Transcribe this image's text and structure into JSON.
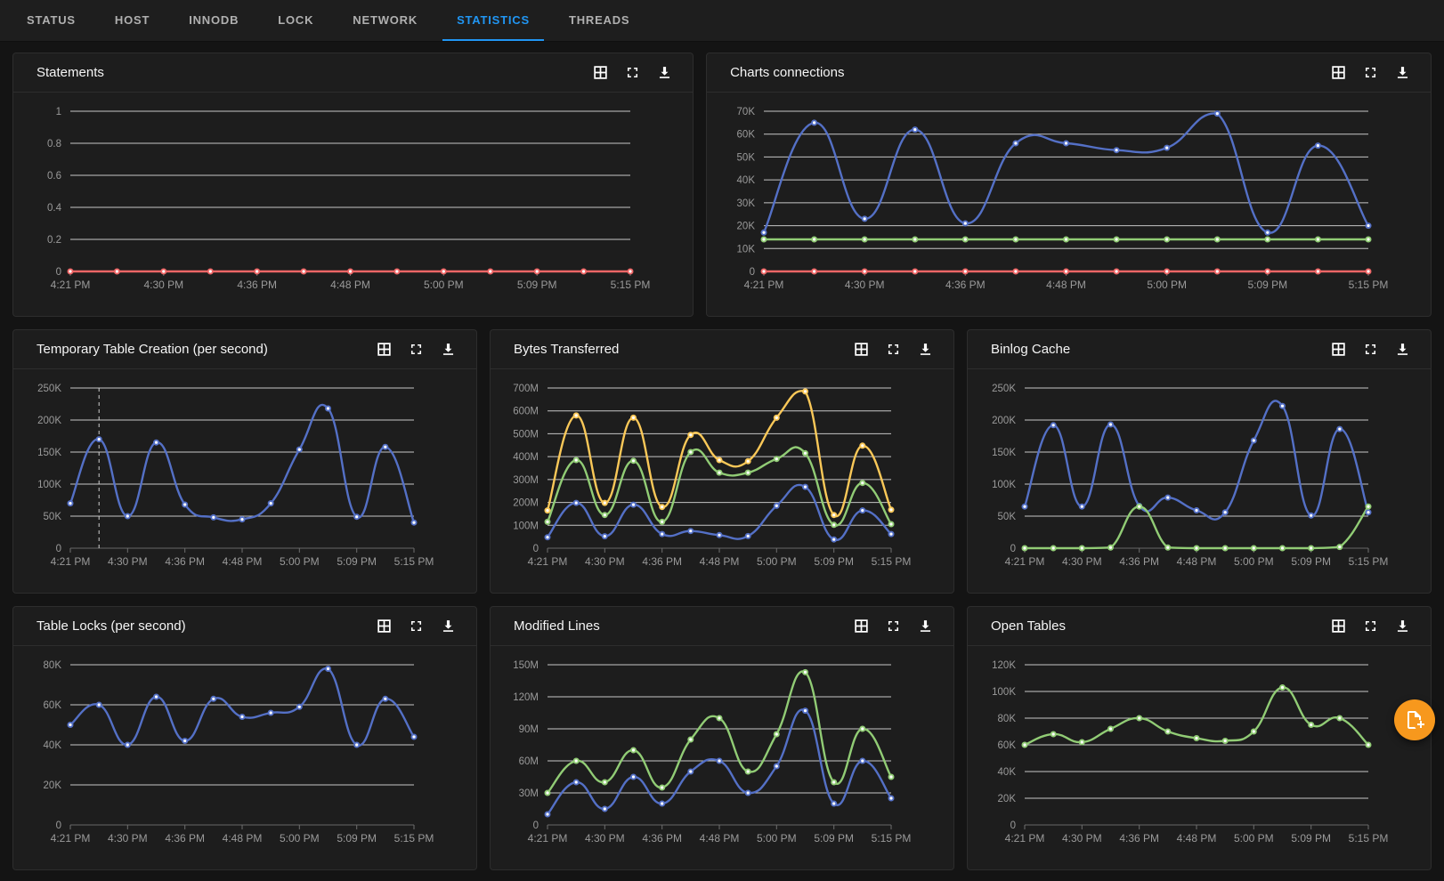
{
  "tabbar": {
    "tabs": [
      {
        "label": "STATUS",
        "active": false
      },
      {
        "label": "HOST",
        "active": false
      },
      {
        "label": "INNODB",
        "active": false
      },
      {
        "label": "LOCK",
        "active": false
      },
      {
        "label": "NETWORK",
        "active": false
      },
      {
        "label": "STATISTICS",
        "active": true
      },
      {
        "label": "THREADS",
        "active": false
      }
    ]
  },
  "panel_action_icons": [
    "table-view-icon",
    "fullscreen-icon",
    "download-icon"
  ],
  "colors": {
    "accent_blue": "#2196f3",
    "series_blue": "#5470c6",
    "series_green": "#91cc75",
    "series_yellow": "#fac858",
    "series_red": "#ee6666",
    "fab_orange": "#f7981d",
    "gridline": "#d9d9d9",
    "axis_zero": "#6e6e6e",
    "tick_text": "#9a9a9a"
  },
  "x_axis": {
    "labels": [
      "4:21 PM",
      "4:30 PM",
      "4:36 PM",
      "4:48 PM",
      "5:00 PM",
      "5:09 PM",
      "5:15 PM"
    ],
    "label_point_indices": [
      0,
      2,
      4,
      6,
      8,
      10,
      12
    ],
    "n_points": 13
  },
  "chart_data": [
    {
      "title": "Statements",
      "type": "line",
      "ymax": 1,
      "yticks": [
        {
          "v": 1,
          "label": "1"
        },
        {
          "v": 0.8,
          "label": "0.8"
        },
        {
          "v": 0.6,
          "label": "0.6"
        },
        {
          "v": 0.4,
          "label": "0.4"
        },
        {
          "v": 0.2,
          "label": "0.2"
        },
        {
          "v": 0,
          "label": "0"
        }
      ],
      "series": [
        {
          "name": "red",
          "color": "#ee6666",
          "values": [
            0,
            0,
            0,
            0,
            0,
            0,
            0,
            0,
            0,
            0,
            0,
            0,
            0
          ]
        }
      ],
      "dashed_vline_index": null
    },
    {
      "title": "Charts connections",
      "type": "line",
      "ymax": 70,
      "yticks": [
        {
          "v": 70,
          "label": "70K"
        },
        {
          "v": 60,
          "label": "60K"
        },
        {
          "v": 50,
          "label": "50K"
        },
        {
          "v": 40,
          "label": "40K"
        },
        {
          "v": 30,
          "label": "30K"
        },
        {
          "v": 20,
          "label": "20K"
        },
        {
          "v": 10,
          "label": "10K"
        },
        {
          "v": 0,
          "label": "0"
        }
      ],
      "series": [
        {
          "name": "blue",
          "color": "#5470c6",
          "values": [
            17,
            65,
            23,
            62,
            21,
            56,
            56,
            53,
            54,
            69,
            17,
            55,
            20
          ]
        },
        {
          "name": "green",
          "color": "#91cc75",
          "values": [
            14,
            14,
            14,
            14,
            14,
            14,
            14,
            14,
            14,
            14,
            14,
            14,
            14
          ]
        },
        {
          "name": "red",
          "color": "#ee6666",
          "values": [
            0,
            0,
            0,
            0,
            0,
            0,
            0,
            0,
            0,
            0,
            0,
            0,
            0
          ]
        }
      ],
      "dashed_vline_index": null
    },
    {
      "title": "Temporary Table Creation (per second)",
      "type": "line",
      "ymax": 250,
      "yticks": [
        {
          "v": 250,
          "label": "250K"
        },
        {
          "v": 200,
          "label": "200K"
        },
        {
          "v": 150,
          "label": "150K"
        },
        {
          "v": 100,
          "label": "100K"
        },
        {
          "v": 50,
          "label": "50K"
        },
        {
          "v": 0,
          "label": "0"
        }
      ],
      "series": [
        {
          "name": "blue",
          "color": "#5470c6",
          "values": [
            70,
            170,
            50,
            165,
            68,
            48,
            45,
            70,
            154,
            218,
            49,
            158,
            40
          ]
        }
      ],
      "dashed_vline_index": 1
    },
    {
      "title": "Bytes Transferred",
      "type": "line",
      "ymax": 700,
      "yticks": [
        {
          "v": 700,
          "label": "700M"
        },
        {
          "v": 600,
          "label": "600M"
        },
        {
          "v": 500,
          "label": "500M"
        },
        {
          "v": 400,
          "label": "400M"
        },
        {
          "v": 300,
          "label": "300M"
        },
        {
          "v": 200,
          "label": "200M"
        },
        {
          "v": 100,
          "label": "100M"
        },
        {
          "v": 0,
          "label": "0"
        }
      ],
      "series": [
        {
          "name": "yellow",
          "color": "#fac858",
          "values": [
            165,
            580,
            198,
            570,
            180,
            495,
            385,
            380,
            570,
            685,
            145,
            448,
            168
          ]
        },
        {
          "name": "green",
          "color": "#91cc75",
          "values": [
            115,
            385,
            145,
            382,
            115,
            420,
            330,
            330,
            390,
            415,
            102,
            285,
            105
          ]
        },
        {
          "name": "blue",
          "color": "#5470c6",
          "values": [
            48,
            198,
            52,
            190,
            62,
            75,
            57,
            53,
            185,
            268,
            38,
            165,
            62
          ]
        }
      ],
      "dashed_vline_index": null
    },
    {
      "title": "Binlog Cache",
      "type": "line",
      "ymax": 250,
      "yticks": [
        {
          "v": 250,
          "label": "250K"
        },
        {
          "v": 200,
          "label": "200K"
        },
        {
          "v": 150,
          "label": "150K"
        },
        {
          "v": 100,
          "label": "100K"
        },
        {
          "v": 50,
          "label": "50K"
        },
        {
          "v": 0,
          "label": "0"
        }
      ],
      "series": [
        {
          "name": "blue",
          "color": "#5470c6",
          "values": [
            65,
            192,
            65,
            193,
            66,
            79,
            59,
            56,
            168,
            222,
            51,
            186,
            56
          ]
        },
        {
          "name": "green",
          "color": "#91cc75",
          "values": [
            0,
            0,
            0,
            1,
            65,
            1,
            0,
            0,
            0,
            0,
            0,
            2,
            65
          ]
        }
      ],
      "dashed_vline_index": null
    },
    {
      "title": "Table Locks (per second)",
      "type": "line",
      "ymax": 80,
      "yticks": [
        {
          "v": 80,
          "label": "80K"
        },
        {
          "v": 60,
          "label": "60K"
        },
        {
          "v": 40,
          "label": "40K"
        },
        {
          "v": 20,
          "label": "20K"
        },
        {
          "v": 0,
          "label": "0"
        }
      ],
      "series": [
        {
          "name": "blue",
          "color": "#5470c6",
          "values": [
            50,
            60,
            40,
            64,
            42,
            63,
            54,
            56,
            59,
            78,
            40,
            63,
            44
          ]
        }
      ],
      "dashed_vline_index": null
    },
    {
      "title": "Modified Lines",
      "type": "line",
      "ymax": 150,
      "yticks": [
        {
          "v": 150,
          "label": "150M"
        },
        {
          "v": 120,
          "label": "120M"
        },
        {
          "v": 90,
          "label": "90M"
        },
        {
          "v": 60,
          "label": "60M"
        },
        {
          "v": 30,
          "label": "30M"
        },
        {
          "v": 0,
          "label": "0"
        }
      ],
      "series": [
        {
          "name": "green",
          "color": "#91cc75",
          "values": [
            30,
            60,
            40,
            70,
            35,
            80,
            100,
            50,
            85,
            143,
            40,
            90,
            45
          ]
        },
        {
          "name": "blue",
          "color": "#5470c6",
          "values": [
            10,
            40,
            15,
            45,
            20,
            50,
            60,
            30,
            55,
            107,
            20,
            60,
            25
          ]
        }
      ],
      "dashed_vline_index": null
    },
    {
      "title": "Open Tables",
      "type": "line",
      "ymax": 120,
      "yticks": [
        {
          "v": 120,
          "label": "120K"
        },
        {
          "v": 100,
          "label": "100K"
        },
        {
          "v": 80,
          "label": "80K"
        },
        {
          "v": 60,
          "label": "60K"
        },
        {
          "v": 40,
          "label": "40K"
        },
        {
          "v": 20,
          "label": "20K"
        },
        {
          "v": 0,
          "label": "0"
        }
      ],
      "series": [
        {
          "name": "green",
          "color": "#91cc75",
          "values": [
            60,
            68,
            62,
            72,
            80,
            70,
            65,
            63,
            70,
            103,
            75,
            80,
            60
          ]
        }
      ],
      "dashed_vline_index": null
    }
  ],
  "fab": {
    "icon": "note-add-icon",
    "color": "#f7981d"
  }
}
